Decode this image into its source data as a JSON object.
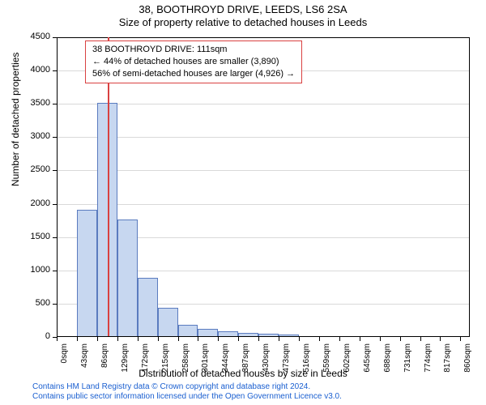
{
  "title": {
    "line1": "38, BOOTHROYD DRIVE, LEEDS, LS6 2SA",
    "line2": "Size of property relative to detached houses in Leeds",
    "fontsize": 13,
    "color": "#000000"
  },
  "chart": {
    "type": "histogram",
    "background_color": "#ffffff",
    "axis_color": "#000000",
    "grid_color": "#d9d9d9",
    "ylim": [
      0,
      4500
    ],
    "ytick_step": 500,
    "yticks": [
      0,
      500,
      1000,
      1500,
      2000,
      2500,
      3000,
      3500,
      4000,
      4500
    ],
    "ytick_fontsize": 11,
    "xlim_sqm": [
      0,
      880
    ],
    "xtick_labels": [
      "0sqm",
      "43sqm",
      "86sqm",
      "129sqm",
      "172sqm",
      "215sqm",
      "258sqm",
      "301sqm",
      "344sqm",
      "387sqm",
      "430sqm",
      "473sqm",
      "516sqm",
      "559sqm",
      "602sqm",
      "645sqm",
      "688sqm",
      "731sqm",
      "774sqm",
      "817sqm",
      "860sqm"
    ],
    "xtick_fontsize": 10,
    "ylabel": "Number of detached properties",
    "xlabel": "Distribution of detached houses by size in Leeds",
    "label_fontsize": 12,
    "bars": {
      "bin_width_sqm": 43,
      "counts": [
        0,
        1900,
        3500,
        1750,
        870,
        430,
        170,
        110,
        70,
        50,
        40,
        30,
        0,
        0,
        0,
        0,
        0,
        0,
        0,
        0
      ],
      "fill_color": "#c7d7f0",
      "stroke_color": "#5a7bbf",
      "stroke_width": 1
    },
    "marker": {
      "value_sqm": 111,
      "color": "#d94141",
      "width": 2
    }
  },
  "annotation": {
    "lines": [
      "38 BOOTHROYD DRIVE: 111sqm",
      "← 44% of detached houses are smaller (3,890)",
      "56% of semi-detached houses are larger (4,926) →"
    ],
    "border_color": "#d94141",
    "background_color": "#ffffff",
    "fontsize": 11
  },
  "attribution": {
    "line1": "Contains HM Land Registry data © Crown copyright and database right 2024.",
    "line2": "Contains public sector information licensed under the Open Government Licence v3.0.",
    "color": "#1a5fd0",
    "fontsize": 10
  }
}
